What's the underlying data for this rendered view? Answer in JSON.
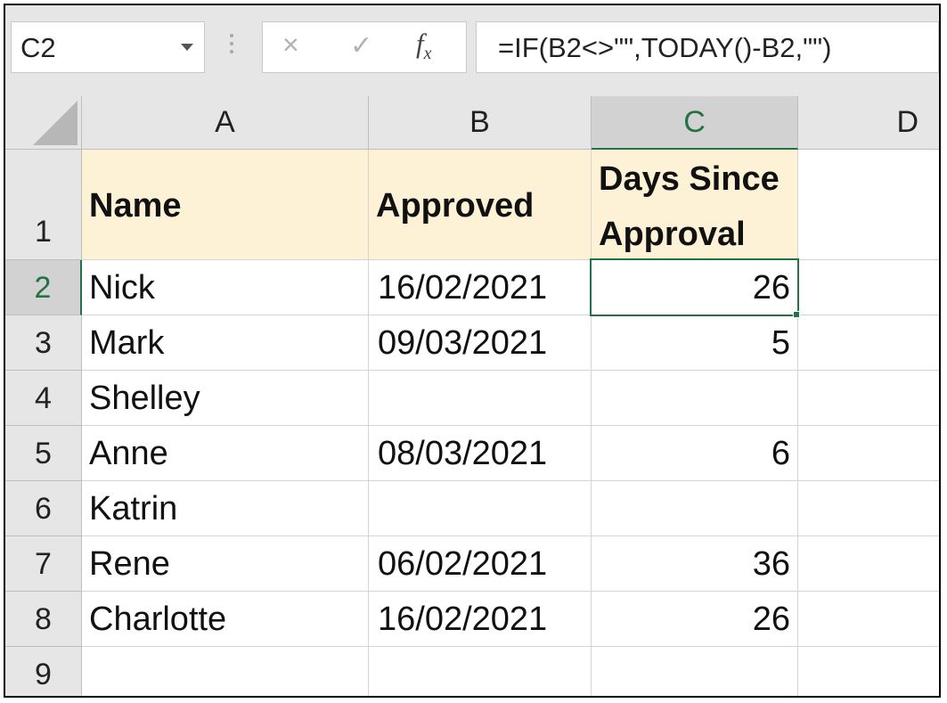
{
  "name_box": {
    "value": "C2"
  },
  "formula_bar": {
    "cancel_icon": "×",
    "enter_icon": "✓",
    "fx_label": "fx",
    "formula": "=IF(B2<>\"\",TODAY()-B2,\"\")"
  },
  "columns": [
    "A",
    "B",
    "C",
    "D"
  ],
  "rows": [
    "1",
    "2",
    "3",
    "4",
    "5",
    "6",
    "7",
    "8",
    "9"
  ],
  "headers": {
    "name": "Name",
    "approved": "Approved",
    "days_line1": "Days Since",
    "days_line2": "Approval"
  },
  "data_rows": [
    {
      "name": "Nick",
      "approved": "16/02/2021",
      "days": "26"
    },
    {
      "name": "Mark",
      "approved": "09/03/2021",
      "days": "5"
    },
    {
      "name": "Shelley",
      "approved": "",
      "days": ""
    },
    {
      "name": "Anne",
      "approved": "08/03/2021",
      "days": "6"
    },
    {
      "name": "Katrin",
      "approved": "",
      "days": ""
    },
    {
      "name": "Rene",
      "approved": "06/02/2021",
      "days": "36"
    },
    {
      "name": "Charlotte",
      "approved": "16/02/2021",
      "days": "26"
    }
  ],
  "selected_cell": "C2",
  "colors": {
    "accent": "#217346",
    "header_fill": "#fdf1d6",
    "chrome": "#e6e6e6"
  }
}
